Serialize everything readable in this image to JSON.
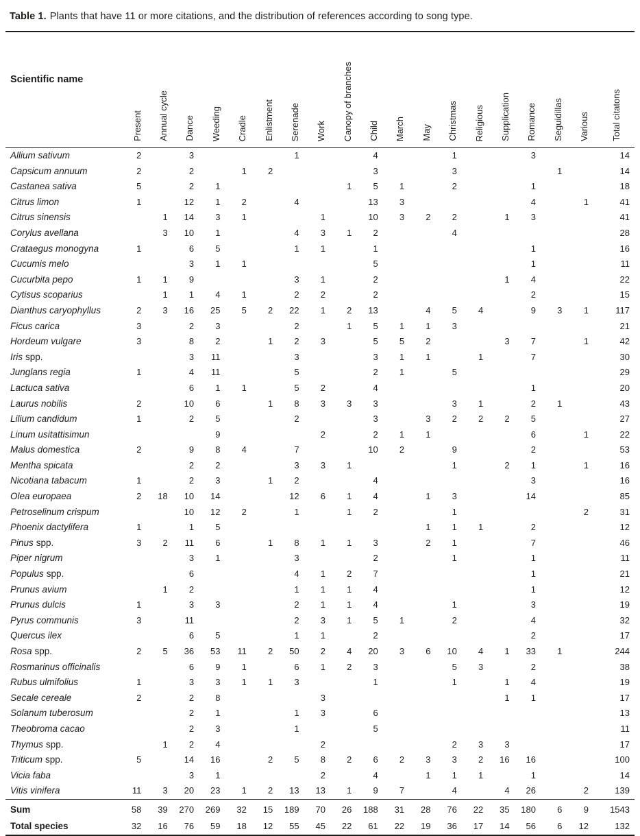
{
  "title": {
    "prefix": "Table 1.",
    "text": "Plants that have 11 or more citations, and the distribution of references according to song type."
  },
  "colors": {
    "ink": "#1d1d1b",
    "rule": "#1d1d1b",
    "background": "#ffffff"
  },
  "table": {
    "name_header": "Scientific name",
    "columns": [
      "Present",
      "Annual cycle",
      "Dance",
      "Weeding",
      "Cradle",
      "Enlistment",
      "Serenade",
      "Work",
      "Canopy of branches",
      "Child",
      "March",
      "May",
      "Christmas",
      "Religious",
      "Supplication",
      "Romance",
      "Seguidillas",
      "Various",
      "Total citatons"
    ],
    "rows": [
      {
        "italic": "Allium sativum",
        "roman": "",
        "values": [
          "2",
          "",
          "3",
          "",
          "",
          "",
          "1",
          "",
          "",
          "4",
          "",
          "",
          "1",
          "",
          "",
          "3",
          "",
          "",
          "14"
        ]
      },
      {
        "italic": "Capsicum annuum",
        "roman": "",
        "values": [
          "2",
          "",
          "2",
          "",
          "1",
          "2",
          "",
          "",
          "",
          "3",
          "",
          "",
          "3",
          "",
          "",
          "",
          "1",
          "",
          "14"
        ]
      },
      {
        "italic": "Castanea sativa",
        "roman": "",
        "values": [
          "5",
          "",
          "2",
          "1",
          "",
          "",
          "",
          "",
          "1",
          "5",
          "1",
          "",
          "2",
          "",
          "",
          "1",
          "",
          "",
          "18"
        ]
      },
      {
        "italic": "Citrus limon",
        "roman": "",
        "values": [
          "1",
          "",
          "12",
          "1",
          "2",
          "",
          "4",
          "",
          "",
          "13",
          "3",
          "",
          "",
          "",
          "",
          "4",
          "",
          "1",
          "41"
        ]
      },
      {
        "italic": "Citrus sinensis",
        "roman": "",
        "values": [
          "",
          "1",
          "14",
          "3",
          "1",
          "",
          "",
          "1",
          "",
          "10",
          "3",
          "2",
          "2",
          "",
          "1",
          "3",
          "",
          "",
          "41"
        ]
      },
      {
        "italic": "Corylus avellana",
        "roman": "",
        "values": [
          "",
          "3",
          "10",
          "1",
          "",
          "",
          "4",
          "3",
          "1",
          "2",
          "",
          "",
          "4",
          "",
          "",
          "",
          "",
          "",
          "28"
        ]
      },
      {
        "italic": "Crataegus monogyna",
        "roman": "",
        "values": [
          "1",
          "",
          "6",
          "5",
          "",
          "",
          "1",
          "1",
          "",
          "1",
          "",
          "",
          "",
          "",
          "",
          "1",
          "",
          "",
          "16"
        ]
      },
      {
        "italic": "Cucumis melo",
        "roman": "",
        "values": [
          "",
          "",
          "3",
          "1",
          "1",
          "",
          "",
          "",
          "",
          "5",
          "",
          "",
          "",
          "",
          "",
          "1",
          "",
          "",
          "11"
        ]
      },
      {
        "italic": "Cucurbita pepo",
        "roman": "",
        "values": [
          "1",
          "1",
          "9",
          "",
          "",
          "",
          "3",
          "1",
          "",
          "2",
          "",
          "",
          "",
          "",
          "1",
          "4",
          "",
          "",
          "22"
        ]
      },
      {
        "italic": "Cytisus scoparius",
        "roman": "",
        "values": [
          "",
          "1",
          "1",
          "4",
          "1",
          "",
          "2",
          "2",
          "",
          "2",
          "",
          "",
          "",
          "",
          "",
          "2",
          "",
          "",
          "15"
        ]
      },
      {
        "italic": "Dianthus caryophyllus",
        "roman": "",
        "values": [
          "2",
          "3",
          "16",
          "25",
          "5",
          "2",
          "22",
          "1",
          "2",
          "13",
          "",
          "4",
          "5",
          "4",
          "",
          "9",
          "3",
          "1",
          "117"
        ]
      },
      {
        "italic": "Ficus carica",
        "roman": "",
        "values": [
          "3",
          "",
          "2",
          "3",
          "",
          "",
          "2",
          "",
          "1",
          "5",
          "1",
          "1",
          "3",
          "",
          "",
          "",
          "",
          "",
          "21"
        ]
      },
      {
        "italic": "Hordeum vulgare",
        "roman": "",
        "values": [
          "3",
          "",
          "8",
          "2",
          "",
          "1",
          "2",
          "3",
          "",
          "5",
          "5",
          "2",
          "",
          "",
          "3",
          "7",
          "",
          "1",
          "42"
        ]
      },
      {
        "italic": "Iris",
        "roman": "spp.",
        "values": [
          "",
          "",
          "3",
          "11",
          "",
          "",
          "3",
          "",
          "",
          "3",
          "1",
          "1",
          "",
          "1",
          "",
          "7",
          "",
          "",
          "30"
        ]
      },
      {
        "italic": "Junglans regia",
        "roman": "",
        "values": [
          "1",
          "",
          "4",
          "11",
          "",
          "",
          "5",
          "",
          "",
          "2",
          "1",
          "",
          "5",
          "",
          "",
          "",
          "",
          "",
          "29"
        ]
      },
      {
        "italic": "Lactuca sativa",
        "roman": "",
        "values": [
          "",
          "",
          "6",
          "1",
          "1",
          "",
          "5",
          "2",
          "",
          "4",
          "",
          "",
          "",
          "",
          "",
          "1",
          "",
          "",
          "20"
        ]
      },
      {
        "italic": "Laurus nobilis",
        "roman": "",
        "values": [
          "2",
          "",
          "10",
          "6",
          "",
          "1",
          "8",
          "3",
          "3",
          "3",
          "",
          "",
          "3",
          "1",
          "",
          "2",
          "1",
          "",
          "43"
        ]
      },
      {
        "italic": "Lilium candidum",
        "roman": "",
        "values": [
          "1",
          "",
          "2",
          "5",
          "",
          "",
          "2",
          "",
          "",
          "3",
          "",
          "3",
          "2",
          "2",
          "2",
          "5",
          "",
          "",
          "27"
        ]
      },
      {
        "italic": "Linum usitattisimun",
        "roman": "",
        "values": [
          "",
          "",
          "",
          "9",
          "",
          "",
          "",
          "2",
          "",
          "2",
          "1",
          "1",
          "",
          "",
          "",
          "6",
          "",
          "1",
          "22"
        ]
      },
      {
        "italic": "Malus domestica",
        "roman": "",
        "values": [
          "2",
          "",
          "9",
          "8",
          "4",
          "",
          "7",
          "",
          "",
          "10",
          "2",
          "",
          "9",
          "",
          "",
          "2",
          "",
          "",
          "53"
        ]
      },
      {
        "italic": "Mentha spicata",
        "roman": "",
        "values": [
          "",
          "",
          "2",
          "2",
          "",
          "",
          "3",
          "3",
          "1",
          "",
          "",
          "",
          "1",
          "",
          "2",
          "1",
          "",
          "1",
          "16"
        ]
      },
      {
        "italic": "Nicotiana tabacum",
        "roman": "",
        "values": [
          "1",
          "",
          "2",
          "3",
          "",
          "1",
          "2",
          "",
          "",
          "4",
          "",
          "",
          "",
          "",
          "",
          "3",
          "",
          "",
          "16"
        ]
      },
      {
        "italic": "Olea europaea",
        "roman": "",
        "values": [
          "2",
          "18",
          "10",
          "14",
          "",
          "",
          "12",
          "6",
          "1",
          "4",
          "",
          "1",
          "3",
          "",
          "",
          "14",
          "",
          "",
          "85"
        ]
      },
      {
        "italic": "Petroselinum crispum",
        "roman": "",
        "values": [
          "",
          "",
          "10",
          "12",
          "2",
          "",
          "1",
          "",
          "1",
          "2",
          "",
          "",
          "1",
          "",
          "",
          "",
          "",
          "2",
          "31"
        ]
      },
      {
        "italic": "Phoenix dactylifera",
        "roman": "",
        "values": [
          "1",
          "",
          "1",
          "5",
          "",
          "",
          "",
          "",
          "",
          "",
          "",
          "1",
          "1",
          "1",
          "",
          "2",
          "",
          "",
          "12"
        ]
      },
      {
        "italic": "Pinus",
        "roman": "spp.",
        "values": [
          "3",
          "2",
          "11",
          "6",
          "",
          "1",
          "8",
          "1",
          "1",
          "3",
          "",
          "2",
          "1",
          "",
          "",
          "7",
          "",
          "",
          "46"
        ]
      },
      {
        "italic": "Piper nigrum",
        "roman": "",
        "values": [
          "",
          "",
          "3",
          "1",
          "",
          "",
          "3",
          "",
          "",
          "2",
          "",
          "",
          "1",
          "",
          "",
          "1",
          "",
          "",
          "11"
        ]
      },
      {
        "italic": "Populus",
        "roman": "spp.",
        "values": [
          "",
          "",
          "6",
          "",
          "",
          "",
          "4",
          "1",
          "2",
          "7",
          "",
          "",
          "",
          "",
          "",
          "1",
          "",
          "",
          "21"
        ]
      },
      {
        "italic": "Prunus avium",
        "roman": "",
        "values": [
          "",
          "1",
          "2",
          "",
          "",
          "",
          "1",
          "1",
          "1",
          "4",
          "",
          "",
          "",
          "",
          "",
          "1",
          "",
          "",
          "12"
        ]
      },
      {
        "italic": "Prunus dulcis",
        "roman": "",
        "values": [
          "1",
          "",
          "3",
          "3",
          "",
          "",
          "2",
          "1",
          "1",
          "4",
          "",
          "",
          "1",
          "",
          "",
          "3",
          "",
          "",
          "19"
        ]
      },
      {
        "italic": "Pyrus communis",
        "roman": "",
        "values": [
          "3",
          "",
          "11",
          "",
          "",
          "",
          "2",
          "3",
          "1",
          "5",
          "1",
          "",
          "2",
          "",
          "",
          "4",
          "",
          "",
          "32"
        ]
      },
      {
        "italic": "Quercus ilex",
        "roman": "",
        "values": [
          "",
          "",
          "6",
          "5",
          "",
          "",
          "1",
          "1",
          "",
          "2",
          "",
          "",
          "",
          "",
          "",
          "2",
          "",
          "",
          "17"
        ]
      },
      {
        "italic": "Rosa",
        "roman": "spp.",
        "values": [
          "2",
          "5",
          "36",
          "53",
          "11",
          "2",
          "50",
          "2",
          "4",
          "20",
          "3",
          "6",
          "10",
          "4",
          "1",
          "33",
          "1",
          "",
          "244"
        ]
      },
      {
        "italic": "Rosmarinus officinalis",
        "roman": "",
        "values": [
          "",
          "",
          "6",
          "9",
          "1",
          "",
          "6",
          "1",
          "2",
          "3",
          "",
          "",
          "5",
          "3",
          "",
          "2",
          "",
          "",
          "38"
        ]
      },
      {
        "italic": "Rubus ulmifolius",
        "roman": "",
        "values": [
          "1",
          "",
          "3",
          "3",
          "1",
          "1",
          "3",
          "",
          "",
          "1",
          "",
          "",
          "1",
          "",
          "1",
          "4",
          "",
          "",
          "19"
        ]
      },
      {
        "italic": "Secale cereale",
        "roman": "",
        "values": [
          "2",
          "",
          "2",
          "8",
          "",
          "",
          "",
          "3",
          "",
          "",
          "",
          "",
          "",
          "",
          "1",
          "1",
          "",
          "",
          "17"
        ]
      },
      {
        "italic": "Solanum tuberosum",
        "roman": "",
        "values": [
          "",
          "",
          "2",
          "1",
          "",
          "",
          "1",
          "3",
          "",
          "6",
          "",
          "",
          "",
          "",
          "",
          "",
          "",
          "",
          "13"
        ]
      },
      {
        "italic": "Theobroma cacao",
        "roman": "",
        "values": [
          "",
          "",
          "2",
          "3",
          "",
          "",
          "1",
          "",
          "",
          "5",
          "",
          "",
          "",
          "",
          "",
          "",
          "",
          "",
          "11"
        ]
      },
      {
        "italic": "Thymus",
        "roman": "spp.",
        "values": [
          "",
          "1",
          "2",
          "4",
          "",
          "",
          "",
          "2",
          "",
          "",
          "",
          "",
          "2",
          "3",
          "3",
          "",
          "",
          "",
          "17"
        ]
      },
      {
        "italic": "Triticum",
        "roman": "spp.",
        "values": [
          "5",
          "",
          "14",
          "16",
          "",
          "2",
          "5",
          "8",
          "2",
          "6",
          "2",
          "3",
          "3",
          "2",
          "16",
          "16",
          "",
          "",
          "100"
        ]
      },
      {
        "italic": "Vicia faba",
        "roman": "",
        "values": [
          "",
          "",
          "3",
          "1",
          "",
          "",
          "",
          "2",
          "",
          "4",
          "",
          "1",
          "1",
          "1",
          "",
          "1",
          "",
          "",
          "14"
        ]
      },
      {
        "italic": "Vitis vinifera",
        "roman": "",
        "values": [
          "11",
          "3",
          "20",
          "23",
          "1",
          "2",
          "13",
          "13",
          "1",
          "9",
          "7",
          "",
          "4",
          "",
          "4",
          "26",
          "",
          "2",
          "139"
        ]
      }
    ],
    "footer_rows": [
      {
        "label": "Sum",
        "values": [
          "58",
          "39",
          "270",
          "269",
          "32",
          "15",
          "189",
          "70",
          "26",
          "188",
          "31",
          "28",
          "76",
          "22",
          "35",
          "180",
          "6",
          "9",
          "1543"
        ]
      },
      {
        "label": "Total species",
        "values": [
          "32",
          "16",
          "76",
          "59",
          "18",
          "12",
          "55",
          "45",
          "22",
          "61",
          "22",
          "19",
          "36",
          "17",
          "14",
          "56",
          "6",
          "12",
          "132"
        ]
      }
    ]
  }
}
